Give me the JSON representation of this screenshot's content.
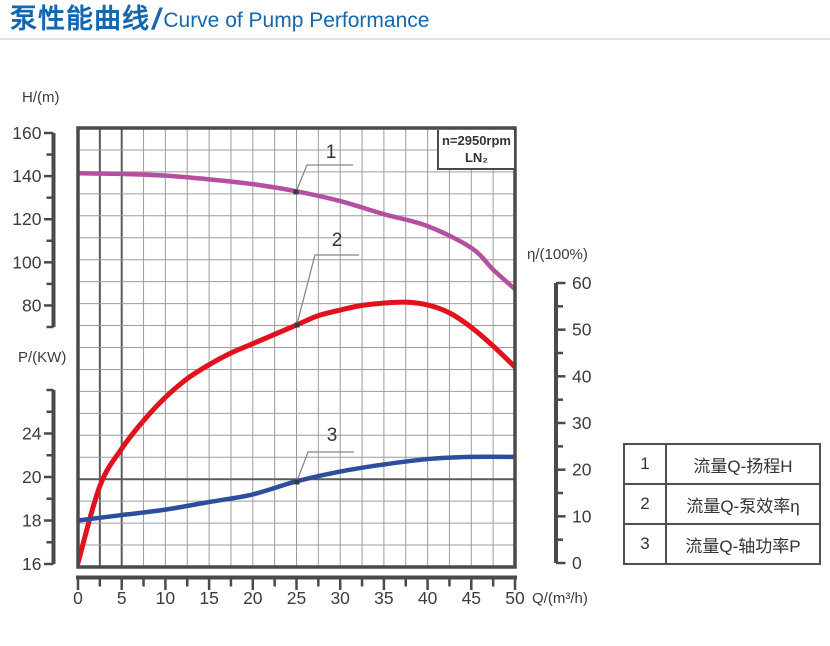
{
  "title": {
    "cjk": "泵性能曲线",
    "sep": "/",
    "en": "Curve of Pump Performance"
  },
  "legend": {
    "rows": [
      {
        "num": "1",
        "label": "流量Q-扬程H"
      },
      {
        "num": "2",
        "label": "流量Q-泵效率η"
      },
      {
        "num": "3",
        "label": "流量Q-轴功率P"
      }
    ]
  },
  "chart_data": {
    "type": "line",
    "annotation": {
      "line1": "n=2950rpm",
      "line2": "LN₂"
    },
    "curve_labels": {
      "c1": "1",
      "c2": "2",
      "c3": "3"
    },
    "grid": true,
    "axes": {
      "q": {
        "title": "Q/(m³/h)",
        "range": [
          0,
          50
        ],
        "tick_labels": [
          "0",
          "5",
          "10",
          "15",
          "20",
          "25",
          "30",
          "35",
          "40",
          "45",
          "50"
        ]
      },
      "h": {
        "title": "H/(m)",
        "tick_labels": [
          "160",
          "140",
          "120",
          "100",
          "80"
        ]
      },
      "p": {
        "title": "P/(KW)",
        "tick_labels": [
          "24",
          "20",
          "18",
          "16"
        ]
      },
      "eta": {
        "title": "η/(100%)",
        "range": [
          0,
          60
        ],
        "tick_labels": [
          "60",
          "50",
          "40",
          "30",
          "20",
          "10",
          "0"
        ]
      }
    },
    "series": [
      {
        "id": "1",
        "name": "流量Q-扬程H",
        "axis": "h",
        "color": "#b4509f",
        "q": [
          0,
          5,
          10,
          15,
          20,
          25,
          30,
          35,
          40,
          45,
          47.5,
          50
        ],
        "values": [
          140.8,
          140.5,
          139.7,
          138,
          135.8,
          132.5,
          128,
          122,
          116.5,
          106.5,
          96.5,
          87.5
        ]
      },
      {
        "id": "2",
        "name": "流量Q-泵效率η",
        "axis": "eta",
        "color": "#e1111d",
        "q": [
          0,
          2.5,
          5,
          7.5,
          10,
          12.5,
          15,
          17.5,
          20,
          22.5,
          25,
          27.5,
          30,
          32.5,
          35,
          37.5,
          40,
          42.5,
          45,
          47.5,
          50
        ],
        "values": [
          0,
          16.5,
          24.5,
          30.5,
          35.5,
          39.5,
          42.5,
          45,
          47,
          49,
          51,
          53,
          54.2,
          55.2,
          55.7,
          55.9,
          55.3,
          53.6,
          50.5,
          46.5,
          42
        ]
      },
      {
        "id": "3",
        "name": "流量Q-轴功率P",
        "axis": "p",
        "color": "#2d4e9d",
        "q": [
          0,
          5,
          10,
          15,
          20,
          25,
          30,
          35,
          40,
          45,
          50
        ],
        "values": [
          18,
          18.25,
          18.5,
          18.85,
          19.2,
          19.8,
          20.5,
          21.15,
          21.65,
          21.85,
          21.85
        ]
      }
    ]
  }
}
